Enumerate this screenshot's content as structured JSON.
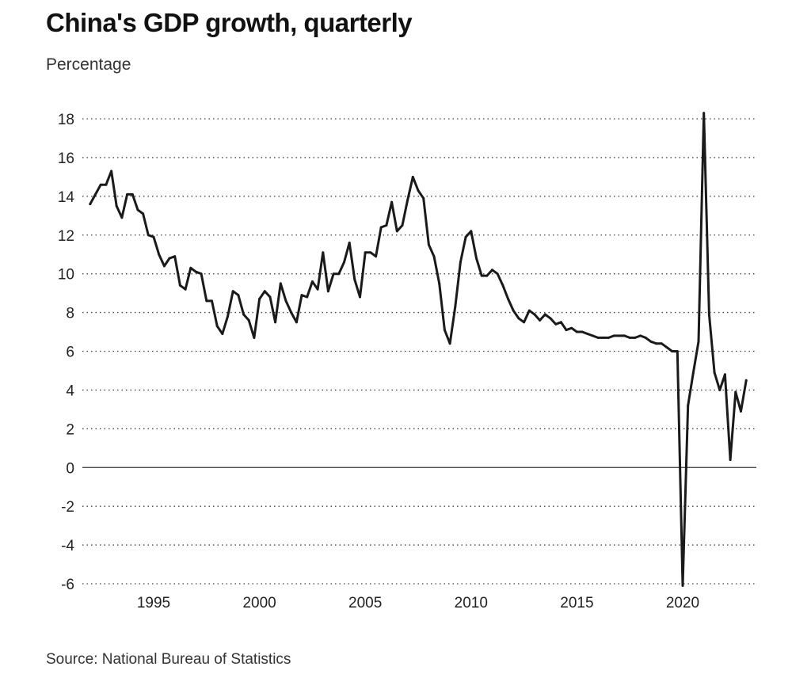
{
  "title": "China's GDP growth, quarterly",
  "subtitle": "Percentage",
  "source": "Source: National Bureau of Statistics",
  "chart_data": {
    "type": "line",
    "title": "China's GDP growth, quarterly",
    "ylabel": "Percentage",
    "xlabel": "",
    "ylim": [
      -6,
      18
    ],
    "xlim": [
      1992.0,
      2023.25
    ],
    "yticks": [
      "18",
      "16",
      "14",
      "12",
      "10",
      "8",
      "6",
      "4",
      "2",
      "0",
      "-2",
      "-4",
      "-6"
    ],
    "ytick_values": [
      18,
      16,
      14,
      12,
      10,
      8,
      6,
      4,
      2,
      0,
      -2,
      -4,
      -6
    ],
    "xticks": [
      "1995",
      "2000",
      "2005",
      "2010",
      "2015",
      "2020"
    ],
    "xtick_values": [
      1995,
      2000,
      2005,
      2010,
      2015,
      2020
    ],
    "grid": "dotted horizontal",
    "line_color": "#1a1a1a",
    "series": [
      {
        "x": [
          1992.0,
          1992.25,
          1992.5,
          1992.75,
          1993.0,
          1993.25,
          1993.5,
          1993.75,
          1994.0,
          1994.25,
          1994.5,
          1994.75,
          1995.0,
          1995.25,
          1995.5,
          1995.75,
          1996.0,
          1996.25,
          1996.5,
          1996.75,
          1997.0,
          1997.25,
          1997.5,
          1997.75,
          1998.0,
          1998.25,
          1998.5,
          1998.75,
          1999.0,
          1999.25,
          1999.5,
          1999.75,
          2000.0,
          2000.25,
          2000.5,
          2000.75,
          2001.0,
          2001.25,
          2001.5,
          2001.75,
          2002.0,
          2002.25,
          2002.5,
          2002.75,
          2003.0,
          2003.25,
          2003.5,
          2003.75,
          2004.0,
          2004.25,
          2004.5,
          2004.75,
          2005.0,
          2005.25,
          2005.5,
          2005.75,
          2006.0,
          2006.25,
          2006.5,
          2006.75,
          2007.0,
          2007.25,
          2007.5,
          2007.75,
          2008.0,
          2008.25,
          2008.5,
          2008.75,
          2009.0,
          2009.25,
          2009.5,
          2009.75,
          2010.0,
          2010.25,
          2010.5,
          2010.75,
          2011.0,
          2011.25,
          2011.5,
          2011.75,
          2012.0,
          2012.25,
          2012.5,
          2012.75,
          2013.0,
          2013.25,
          2013.5,
          2013.75,
          2014.0,
          2014.25,
          2014.5,
          2014.75,
          2015.0,
          2015.25,
          2015.5,
          2015.75,
          2016.0,
          2016.25,
          2016.5,
          2016.75,
          2017.0,
          2017.25,
          2017.5,
          2017.75,
          2018.0,
          2018.25,
          2018.5,
          2018.75,
          2019.0,
          2019.25,
          2019.5,
          2019.75,
          2020.0,
          2020.25,
          2020.5,
          2020.75,
          2021.0,
          2021.25,
          2021.5,
          2021.75,
          2022.0,
          2022.25,
          2022.5,
          2022.75,
          2023.0
        ],
        "values": [
          13.6,
          14.1,
          14.6,
          14.6,
          15.3,
          13.5,
          12.9,
          14.1,
          14.1,
          13.3,
          13.1,
          12.0,
          11.9,
          11.0,
          10.4,
          10.8,
          10.9,
          9.4,
          9.2,
          10.3,
          10.1,
          10.0,
          8.6,
          8.6,
          7.3,
          6.9,
          7.8,
          9.1,
          8.9,
          7.9,
          7.6,
          6.7,
          8.7,
          9.1,
          8.8,
          7.5,
          9.5,
          8.6,
          8.0,
          7.5,
          8.9,
          8.8,
          9.6,
          9.2,
          11.1,
          9.1,
          10.0,
          10.0,
          10.6,
          11.6,
          9.7,
          8.8,
          11.1,
          11.1,
          10.9,
          12.4,
          12.5,
          13.7,
          12.2,
          12.5,
          13.8,
          15.0,
          14.3,
          13.9,
          11.5,
          10.9,
          9.5,
          7.1,
          6.4,
          8.3,
          10.6,
          11.9,
          12.2,
          10.8,
          9.9,
          9.9,
          10.2,
          10.0,
          9.4,
          8.7,
          8.1,
          7.7,
          7.5,
          8.1,
          7.9,
          7.6,
          7.9,
          7.7,
          7.4,
          7.5,
          7.1,
          7.2,
          7.0,
          7.0,
          6.9,
          6.8,
          6.7,
          6.7,
          6.7,
          6.8,
          6.8,
          6.8,
          6.7,
          6.7,
          6.8,
          6.7,
          6.5,
          6.4,
          6.4,
          6.2,
          6.0,
          6.0,
          -6.1,
          3.2,
          4.9,
          6.5,
          18.3,
          7.9,
          4.9,
          4.0,
          4.8,
          0.4,
          3.9,
          2.9,
          4.5
        ]
      }
    ]
  }
}
